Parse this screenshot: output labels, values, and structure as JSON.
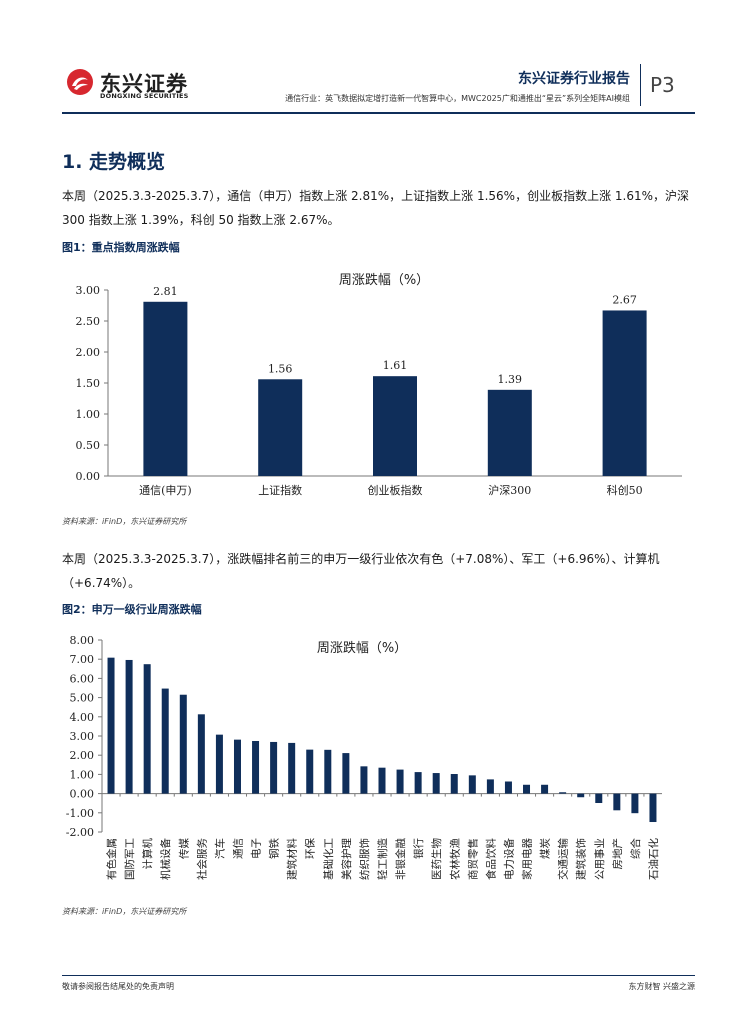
{
  "header": {
    "logo_cn": "东兴证券",
    "logo_en": "DONGXING SECURITIES",
    "report_name": "东兴证券行业报告",
    "subtitle": "通信行业：英飞数据拟定增打造新一代智算中心，MWC2025广和通推出“星云”系列全矩阵AI模组",
    "page": "P3",
    "brand_color": "#0f2e5a",
    "logo_color": "#d7282f"
  },
  "section": {
    "title": "1. 走势概览",
    "para1": "本周（2025.3.3-2025.3.7），通信（申万）指数上涨 2.81%，上证指数上涨 1.56%，创业板指数上涨 1.61%，沪深 300 指数上涨 1.39%，科创 50 指数上涨 2.67%。",
    "fig1_title": "图1：重点指数周涨跌幅",
    "source1": "资料来源：iFinD，东兴证券研究所",
    "para2": "本周（2025.3.3-2025.3.7），涨跌幅排名前三的申万一级行业依次有色（+7.08%）、军工（+6.96%）、计算机（+6.74%）。",
    "fig2_title": "图2：申万一级行业周涨跌幅",
    "source2": "资料来源：iFinD，东兴证券研究所"
  },
  "chart_data": [
    {
      "type": "bar",
      "title": "周涨跌幅（%）",
      "categories": [
        "通信(申万)",
        "上证指数",
        "创业板指数",
        "沪深300",
        "科创50"
      ],
      "values": [
        2.81,
        1.56,
        1.61,
        1.39,
        2.67
      ],
      "data_labels": [
        "2.81",
        "1.56",
        "1.61",
        "1.39",
        "2.67"
      ],
      "ylim": [
        0,
        3.0
      ],
      "yticks": [
        "0.00",
        "0.50",
        "1.00",
        "1.50",
        "2.00",
        "2.50",
        "3.00"
      ],
      "grid": false,
      "bar_color": "#0f2e5a"
    },
    {
      "type": "bar",
      "title": "周涨跌幅（%）",
      "categories": [
        "有色金属",
        "国防军工",
        "计算机",
        "机械设备",
        "传媒",
        "社会服务",
        "汽车",
        "通信",
        "电子",
        "钢铁",
        "建筑材料",
        "环保",
        "基础化工",
        "美容护理",
        "纺织服饰",
        "轻工制造",
        "非银金融",
        "银行",
        "医药生物",
        "农林牧渔",
        "商贸零售",
        "食品饮料",
        "电力设备",
        "家用电器",
        "煤炭",
        "交通运输",
        "建筑装饰",
        "公用事业",
        "房地产",
        "综合",
        "石油石化"
      ],
      "values": [
        7.08,
        6.96,
        6.74,
        5.47,
        5.15,
        4.13,
        3.07,
        2.81,
        2.74,
        2.69,
        2.64,
        2.29,
        2.28,
        2.11,
        1.42,
        1.35,
        1.25,
        1.12,
        1.07,
        1.02,
        0.95,
        0.74,
        0.63,
        0.46,
        0.46,
        0.07,
        -0.19,
        -0.49,
        -0.87,
        -1.02,
        -1.48
      ],
      "ylim": [
        -2.0,
        8.0
      ],
      "yticks": [
        "-2.00",
        "-1.00",
        "0.00",
        "1.00",
        "2.00",
        "3.00",
        "4.00",
        "5.00",
        "6.00",
        "7.00",
        "8.00"
      ],
      "grid": false,
      "bar_color": "#0f2e5a"
    }
  ],
  "footer": {
    "left": "敬请参阅报告结尾处的免责声明",
    "right": "东方财智 兴盛之源"
  }
}
